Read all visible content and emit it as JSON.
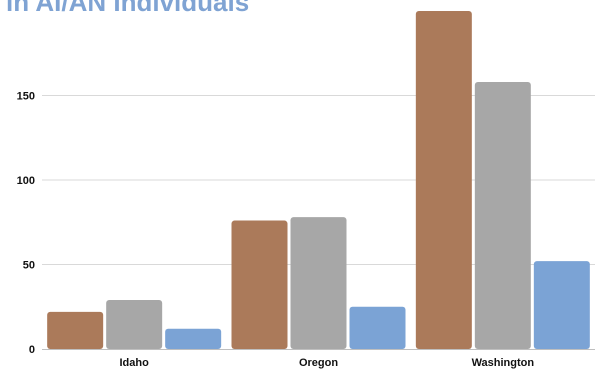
{
  "chart_data": {
    "type": "bar",
    "title": "in AI/AN Individuals",
    "categories": [
      "Idaho",
      "Oregon",
      "Washington"
    ],
    "series": [
      {
        "values": [
          22,
          76,
          200
        ],
        "color": "#AB7A5A"
      },
      {
        "values": [
          29,
          78,
          158
        ],
        "color": "#A7A7A7"
      },
      {
        "values": [
          12,
          25,
          52
        ],
        "color": "#7BA3D5"
      }
    ],
    "yticks": [
      0,
      50,
      100,
      150
    ],
    "ylim": [
      0,
      200
    ],
    "grid": true,
    "legend": "none",
    "colors": {
      "title": "#7FA3D3",
      "grid": "#D9D9D9",
      "axis": "#BFBFBF",
      "text": "#111111"
    }
  }
}
